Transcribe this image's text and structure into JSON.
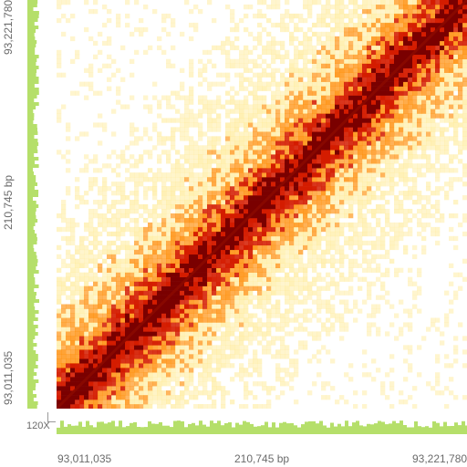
{
  "axis": {
    "x_start": "93,011,035",
    "x_span": "210,745 bp",
    "x_end": "93,221,780",
    "y_start": "93,011,035",
    "y_span": "210,745 bp",
    "y_end": "93,221,780"
  },
  "coverage_scale": "120X",
  "colors": {
    "coverage": "#b5df6a",
    "heat_low": "#ffe680",
    "heat_mid": "#ff8a00",
    "heat_high": "#d41c00",
    "heat_max": "#7a0000"
  }
}
